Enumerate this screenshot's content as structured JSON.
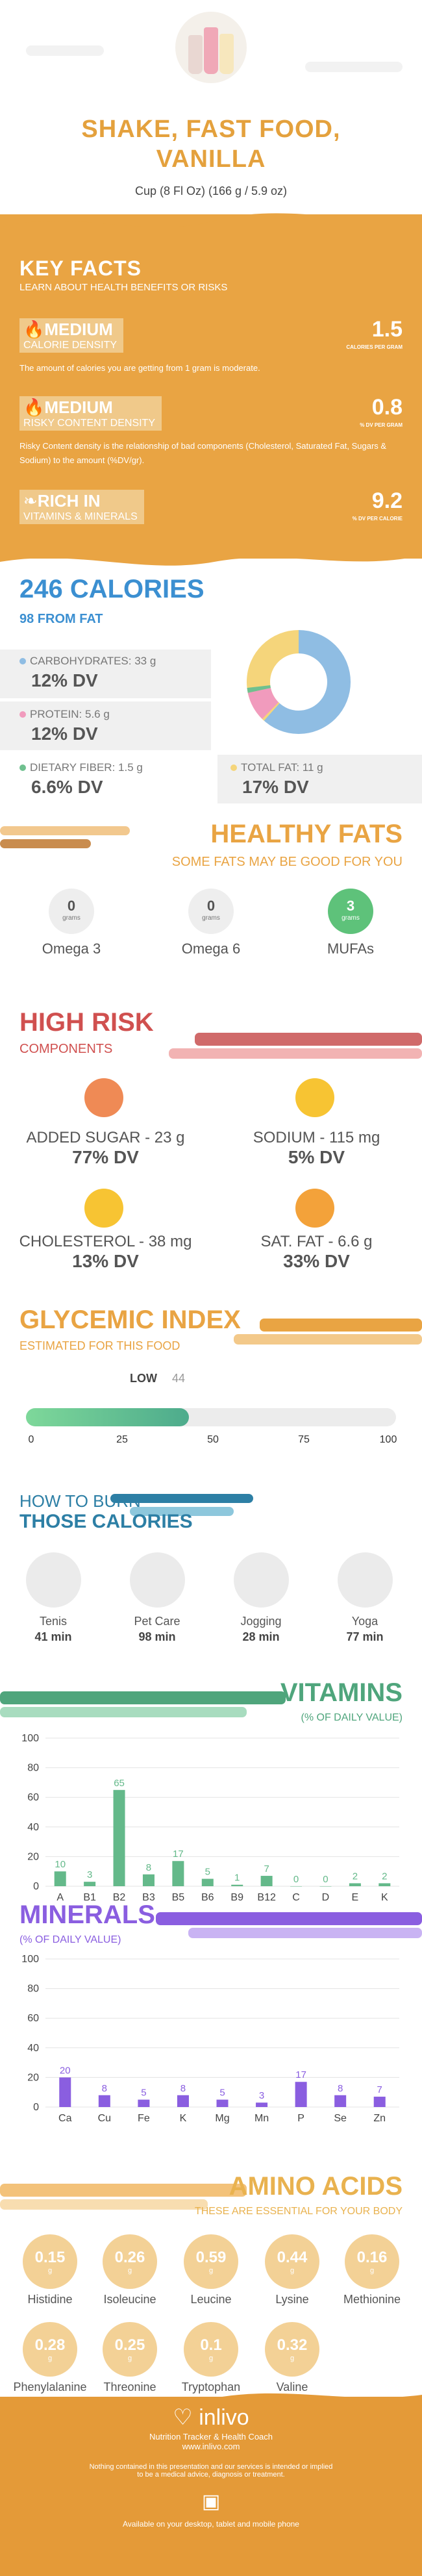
{
  "header": {
    "title_lines": [
      "SHAKE, FAST FOOD,",
      "VANILLA"
    ],
    "serving": "Cup (8 Fl Oz) (166 g / 5.9 oz)",
    "accent": "#e4a13d"
  },
  "key_facts": {
    "title": "KEY FACTS",
    "subtitle": "LEARN ABOUT HEALTH BENEFITS OR RISKS",
    "items": [
      {
        "level": "MEDIUM",
        "label": "CALORIE DENSITY",
        "value": "1.5",
        "unit": "CALORIES PER GRAM",
        "desc": "The amount of calories you are getting from 1 gram is moderate.",
        "icon": "flame-icon"
      },
      {
        "level": "MEDIUM",
        "label": "RISKY CONTENT DENSITY",
        "value": "0.8",
        "unit": "% DV PER GRAM",
        "desc": "Risky Content density is the relationship of bad components (Cholesterol, Saturated Fat, Sugars & Sodium) to the amount (%DV/gr).",
        "icon": "flame-icon"
      },
      {
        "level": "RICH  IN",
        "label": "VITAMINS & MINERALS",
        "value": "9.2",
        "unit": "% DV PER CALORIE",
        "desc": "",
        "icon": "leaf-icon"
      }
    ]
  },
  "calories": {
    "title": "246 CALORIES",
    "from_fat": "98 FROM FAT",
    "carbs_label": "CARBOHYDRATES: 33 g",
    "carbs_dv": "12% DV",
    "protein_label": "PROTEIN: 5.6 g",
    "protein_dv": "12% DV",
    "fiber_label": "DIETARY FIBER: 1.5 g",
    "fiber_dv": "6.6% DV",
    "fat_label": "TOTAL FAT: 11 g",
    "fat_dv": "17% DV",
    "colors": {
      "carbs": "#8fbde3",
      "protein": "#f19bbd",
      "fiber": "#6fc08f",
      "fat": "#f5d57b"
    }
  },
  "healthy_fats": {
    "title": "HEALTHY FATS",
    "subtitle": "SOME FATS MAY BE GOOD FOR YOU",
    "items": [
      {
        "value": "0",
        "unit": "grams",
        "name": "Omega 3"
      },
      {
        "value": "0",
        "unit": "grams",
        "name": "Omega 6"
      },
      {
        "value": "3",
        "unit": "grams",
        "name": "MUFAs"
      }
    ]
  },
  "high_risk": {
    "title": "HIGH RISK",
    "subtitle": "COMPONENTS",
    "items": [
      {
        "name": "ADDED SUGAR - 23 g",
        "dv": "77% DV",
        "mood": "sad"
      },
      {
        "name": "SODIUM - 115 mg",
        "dv": "5% DV",
        "mood": "happy"
      },
      {
        "name": "CHOLESTEROL - 38 mg",
        "dv": "13% DV",
        "mood": "happy"
      },
      {
        "name": "SAT. FAT - 6.6 g",
        "dv": "33% DV",
        "mood": "happy"
      }
    ]
  },
  "glycemic": {
    "title": "GLYCEMIC INDEX",
    "subtitle": "ESTIMATED FOR THIS FOOD",
    "level": "LOW",
    "value": "44",
    "ticks": [
      "0",
      "25",
      "50",
      "75",
      "100"
    ]
  },
  "burn": {
    "title1": "HOW TO BURN",
    "title2": "THOSE CALORIES",
    "items": [
      {
        "name": "Tenis",
        "time": "41 min"
      },
      {
        "name": "Pet Care",
        "time": "98 min"
      },
      {
        "name": "Jogging",
        "time": "28 min"
      },
      {
        "name": "Yoga",
        "time": "77 min"
      }
    ]
  },
  "vitamins": {
    "title": "VITAMINS",
    "subtitle": "(% OF DAILY VALUE)"
  },
  "minerals": {
    "title": "MINERALS",
    "subtitle": "(% OF DAILY VALUE)"
  },
  "chart_data": [
    {
      "type": "bar",
      "title": "VITAMINS",
      "ylabel": "(% OF DAILY VALUE)",
      "categories": [
        "A",
        "B1",
        "B2",
        "B3",
        "B5",
        "B6",
        "B9",
        "B12",
        "C",
        "D",
        "E",
        "K"
      ],
      "values": [
        10,
        3,
        65,
        8,
        17,
        5,
        1,
        7,
        0,
        0,
        2,
        2
      ],
      "yticks": [
        "0",
        "20",
        "40",
        "60",
        "80",
        "100"
      ],
      "ylim": [
        0,
        100
      ],
      "color": "#64b98a"
    },
    {
      "type": "bar",
      "title": "MINERALS",
      "ylabel": "(% OF DAILY VALUE)",
      "categories": [
        "Ca",
        "Cu",
        "Fe",
        "K",
        "Mg",
        "Mn",
        "P",
        "Se",
        "Zn"
      ],
      "values": [
        20,
        8,
        5,
        8,
        5,
        3,
        17,
        8,
        7
      ],
      "yticks": [
        "0",
        "20",
        "40",
        "60",
        "80",
        "100"
      ],
      "ylim": [
        0,
        100
      ],
      "color": "#8a5ee0"
    }
  ],
  "amino": {
    "title": "AMINO ACIDS",
    "subtitle": "THESE ARE ESSENTIAL FOR YOUR BODY",
    "unit": "g",
    "items": [
      {
        "value": "0.15",
        "name": "Histidine"
      },
      {
        "value": "0.26",
        "name": "Isoleucine"
      },
      {
        "value": "0.59",
        "name": "Leucine"
      },
      {
        "value": "0.44",
        "name": "Lysine"
      },
      {
        "value": "0.16",
        "name": "Methionine"
      },
      {
        "value": "0.28",
        "name": "Phenylalanine"
      },
      {
        "value": "0.25",
        "name": "Threonine"
      },
      {
        "value": "0.1",
        "name": "Tryptophan"
      },
      {
        "value": "0.32",
        "name": "Valine"
      }
    ]
  },
  "footer": {
    "brand": "inlivo",
    "tagline": "Nutrition Tracker & Health Coach",
    "url": "www.inlivo.com",
    "disclaimer1": "Nothing contained in this presentation and our services is intended or implied",
    "disclaimer2": "to be a medical advice, diagnosis or treatment.",
    "available": "Available on your desktop, tablet and mobile phone"
  }
}
